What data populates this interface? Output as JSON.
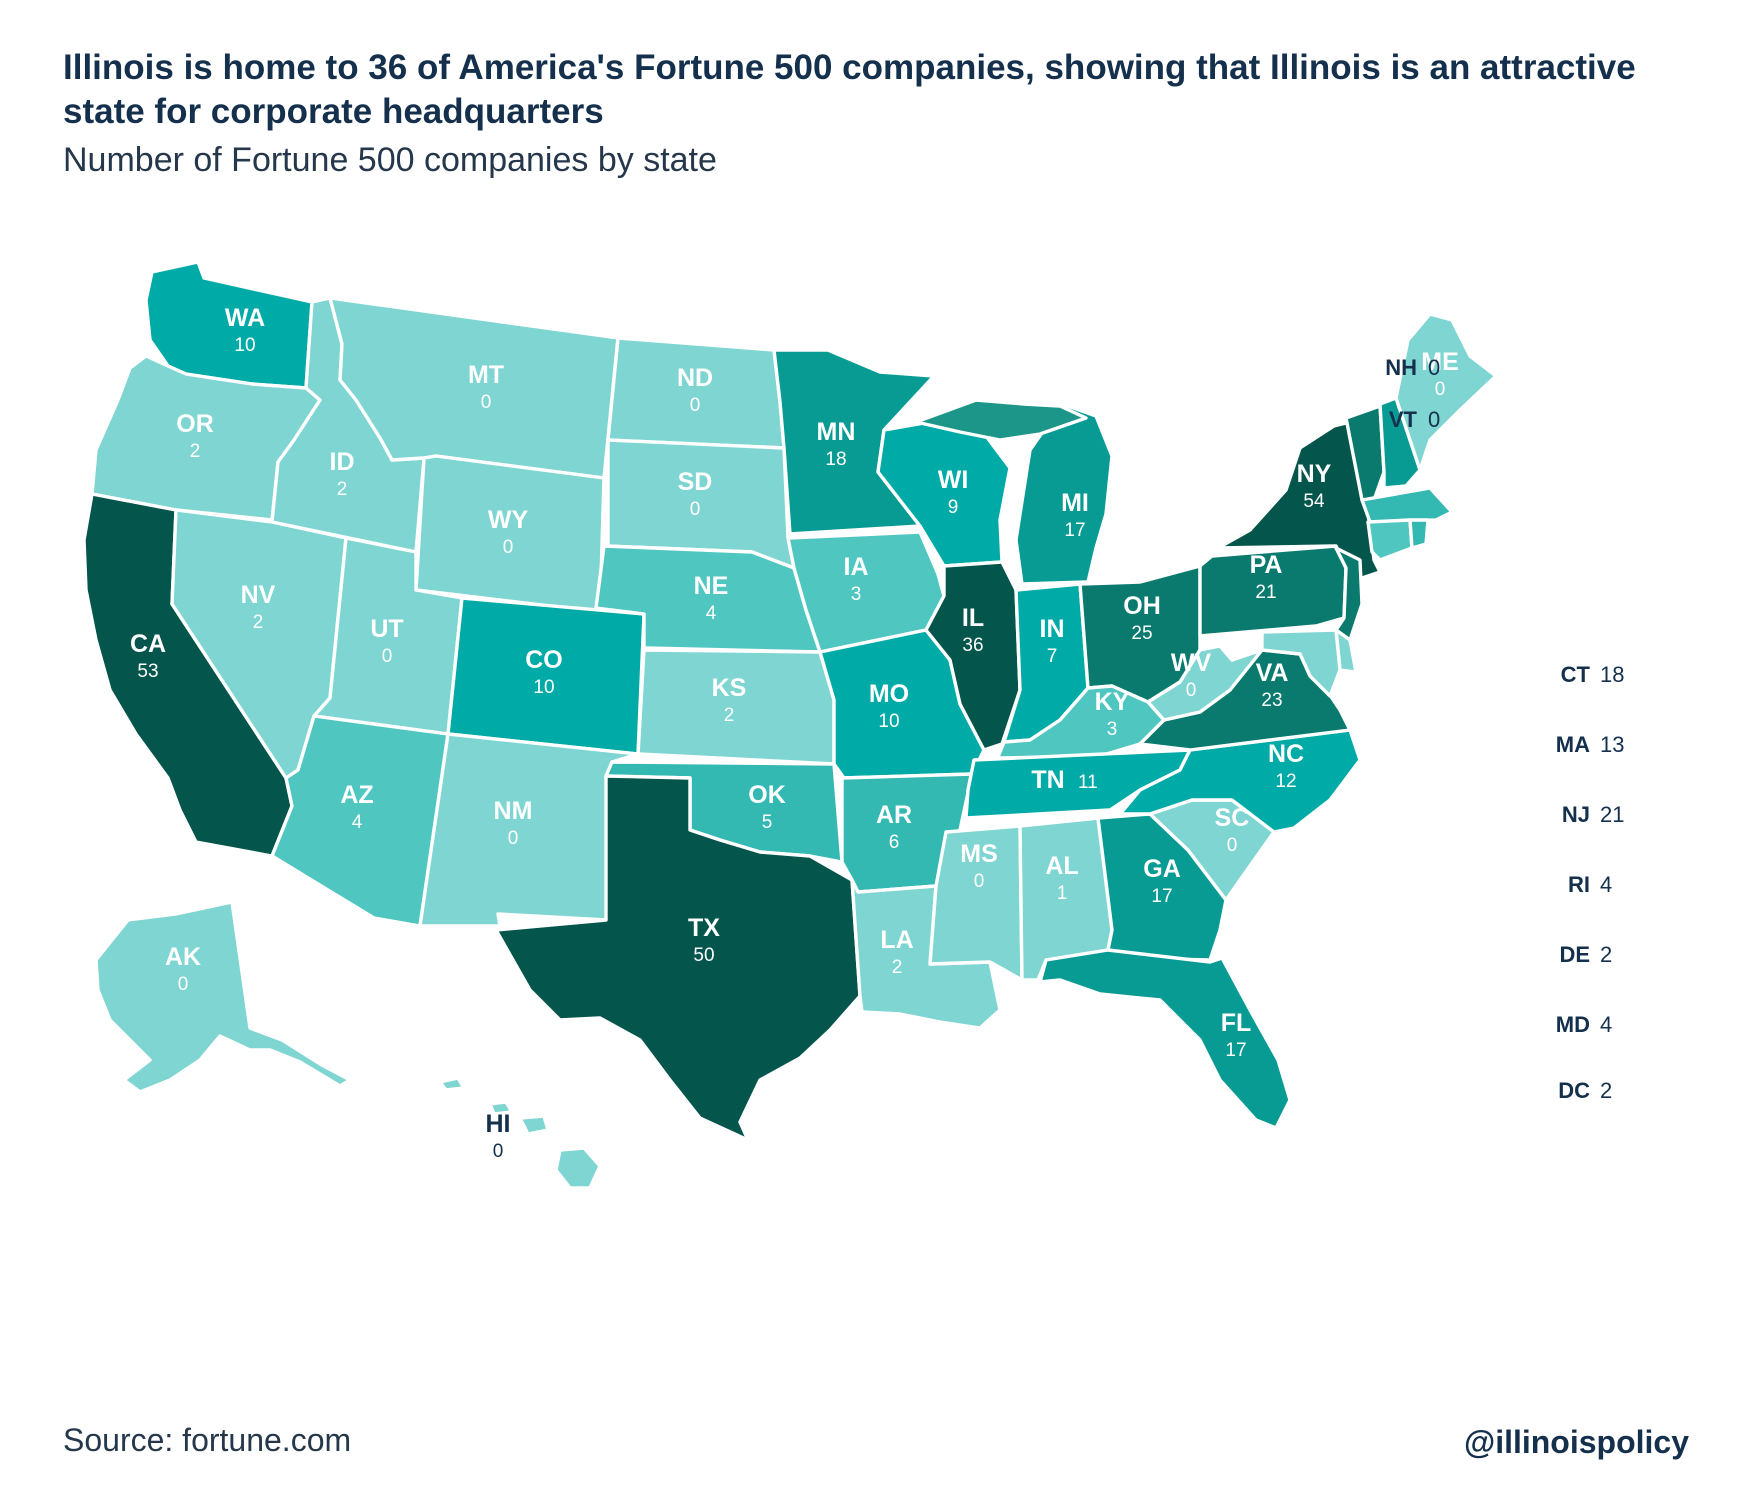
{
  "title": "Illinois is home to 36 of America's Fortune 500 companies, showing that Illinois is an attractive state for corporate headquarters",
  "subtitle": "Number of Fortune 500 companies by state",
  "source": "Source:  fortune.com",
  "handle": "@illinoispolicy",
  "colors": {
    "scale": [
      "#7fd5d1",
      "#50c6c0",
      "#33b8b2",
      "#00aaa6",
      "#089b94",
      "#0a7a6f",
      "#04554c"
    ],
    "label_on_light": "#ffffff",
    "label_dark": "#14304d"
  },
  "states": [
    {
      "code": "WA",
      "value": "10"
    },
    {
      "code": "OR",
      "value": "2"
    },
    {
      "code": "CA",
      "value": "53"
    },
    {
      "code": "ID",
      "value": "2"
    },
    {
      "code": "NV",
      "value": "2"
    },
    {
      "code": "MT",
      "value": "0"
    },
    {
      "code": "WY",
      "value": "0"
    },
    {
      "code": "UT",
      "value": "0"
    },
    {
      "code": "AZ",
      "value": "4"
    },
    {
      "code": "CO",
      "value": "10"
    },
    {
      "code": "NM",
      "value": "0"
    },
    {
      "code": "ND",
      "value": "0"
    },
    {
      "code": "SD",
      "value": "0"
    },
    {
      "code": "NE",
      "value": "4"
    },
    {
      "code": "KS",
      "value": "2"
    },
    {
      "code": "OK",
      "value": "5"
    },
    {
      "code": "TX",
      "value": "50"
    },
    {
      "code": "MN",
      "value": "18"
    },
    {
      "code": "IA",
      "value": "3"
    },
    {
      "code": "MO",
      "value": "10"
    },
    {
      "code": "AR",
      "value": "6"
    },
    {
      "code": "LA",
      "value": "2"
    },
    {
      "code": "WI",
      "value": "9"
    },
    {
      "code": "IL",
      "value": "36"
    },
    {
      "code": "MI",
      "value": "17"
    },
    {
      "code": "IN",
      "value": "7"
    },
    {
      "code": "OH",
      "value": "25"
    },
    {
      "code": "KY",
      "value": "3"
    },
    {
      "code": "TN",
      "value": "11"
    },
    {
      "code": "MS",
      "value": "0"
    },
    {
      "code": "AL",
      "value": "1"
    },
    {
      "code": "GA",
      "value": "17"
    },
    {
      "code": "FL",
      "value": "17"
    },
    {
      "code": "SC",
      "value": "0"
    },
    {
      "code": "NC",
      "value": "12"
    },
    {
      "code": "VA",
      "value": "23"
    },
    {
      "code": "WV",
      "value": "0"
    },
    {
      "code": "PA",
      "value": "21"
    },
    {
      "code": "NY",
      "value": "54"
    },
    {
      "code": "ME",
      "value": "0"
    },
    {
      "code": "AK",
      "value": "0"
    },
    {
      "code": "HI",
      "value": "0"
    }
  ],
  "small_states": [
    {
      "code": "NH",
      "value": "0"
    },
    {
      "code": "VT",
      "value": "0"
    },
    {
      "code": "CT",
      "value": "18"
    },
    {
      "code": "MA",
      "value": "13"
    },
    {
      "code": "NJ",
      "value": "21"
    },
    {
      "code": "RI",
      "value": "4"
    },
    {
      "code": "DE",
      "value": "2"
    },
    {
      "code": "MD",
      "value": "4"
    },
    {
      "code": "DC",
      "value": "2"
    }
  ]
}
